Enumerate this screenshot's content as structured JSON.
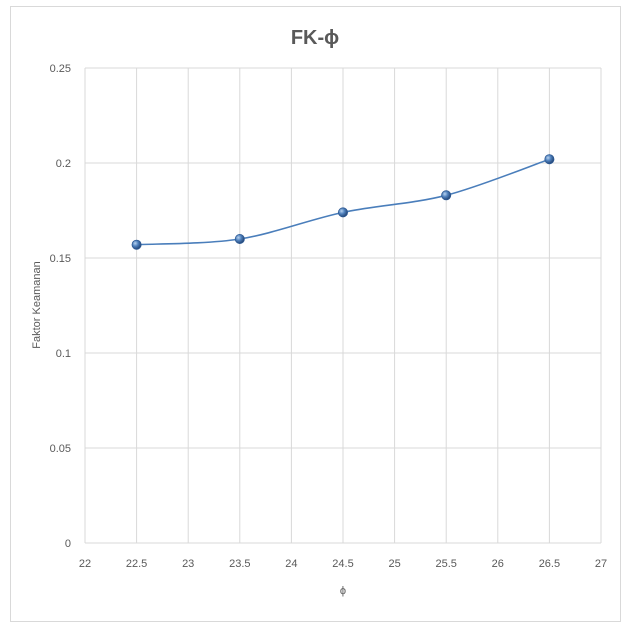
{
  "chart_data": {
    "type": "scatter",
    "title": "FK-ϕ",
    "xlabel": "ϕ",
    "ylabel": "Faktor Keamanan",
    "xlim": [
      22,
      27
    ],
    "ylim": [
      0,
      0.25
    ],
    "x_ticks": [
      "22",
      "22.5",
      "23",
      "23.5",
      "24",
      "24.5",
      "25",
      "25.5",
      "26",
      "26.5",
      "27"
    ],
    "y_ticks": [
      "0",
      "0.05",
      "0.1",
      "0.15",
      "0.2",
      "0.25"
    ],
    "grid": true,
    "legend": "none",
    "series": [
      {
        "x": [
          22.5,
          23.5,
          24.5,
          25.5,
          26.5
        ],
        "y": [
          0.157,
          0.16,
          0.174,
          0.183,
          0.202
        ],
        "color": "#4a7ebb",
        "marker": "circle",
        "line": "smooth"
      }
    ]
  }
}
